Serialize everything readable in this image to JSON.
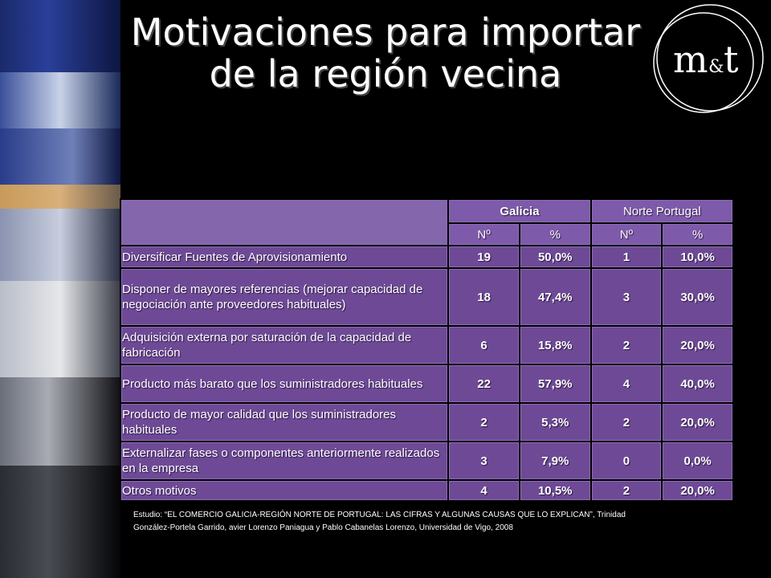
{
  "title": {
    "line1": "Motivaciones para importar",
    "line2": "de la región vecina"
  },
  "logo": {
    "text_m": "m",
    "text_amp": "&",
    "text_t": "t"
  },
  "table": {
    "group_headers": [
      "Galicia",
      "Norte Portugal"
    ],
    "sub_headers": [
      "Nº",
      "%",
      "Nº",
      "%"
    ],
    "rows": [
      {
        "label": "Diversificar Fuentes de Aprovisionamiento",
        "g_n": "19",
        "g_p": "50,0%",
        "p_n": "1",
        "p_p": "10,0%"
      },
      {
        "label": "Disponer de mayores referencias (mejorar capacidad de negociación ante proveedores habituales)",
        "g_n": "18",
        "g_p": "47,4%",
        "p_n": "3",
        "p_p": "30,0%"
      },
      {
        "label": "Adquisición externa por saturación de la capacidad de fabricación",
        "g_n": "6",
        "g_p": "15,8%",
        "p_n": "2",
        "p_p": "20,0%"
      },
      {
        "label": "Producto más barato que los suministradores habituales",
        "g_n": "22",
        "g_p": "57,9%",
        "p_n": "4",
        "p_p": "40,0%"
      },
      {
        "label": "Producto de mayor calidad que los suministradores habituales",
        "g_n": "2",
        "g_p": "5,3%",
        "p_n": "2",
        "p_p": "20,0%"
      },
      {
        "label": "Externalizar fases o componentes anteriormente realizados en la empresa",
        "g_n": "3",
        "g_p": "7,9%",
        "p_n": "0",
        "p_p": "0,0%"
      },
      {
        "label": "Otros motivos",
        "g_n": "4",
        "g_p": "10,5%",
        "p_n": "2",
        "p_p": "20,0%"
      }
    ]
  },
  "source": {
    "line1": "Estudio: “EL COMERCIO GALICIA-REGIÓN NORTE DE PORTUGAL: LAS CIFRAS Y  ALGUNAS CAUSAS QUE LO EXPLICAN”, Trinidad",
    "line2": "González-Portela Garrido, avier Lorenzo Paniagua y Pablo Cabanelas Lorenzo,  Universidad de Vigo,  2008"
  },
  "colors": {
    "cell": "#6e4a96",
    "background": "#000000"
  }
}
